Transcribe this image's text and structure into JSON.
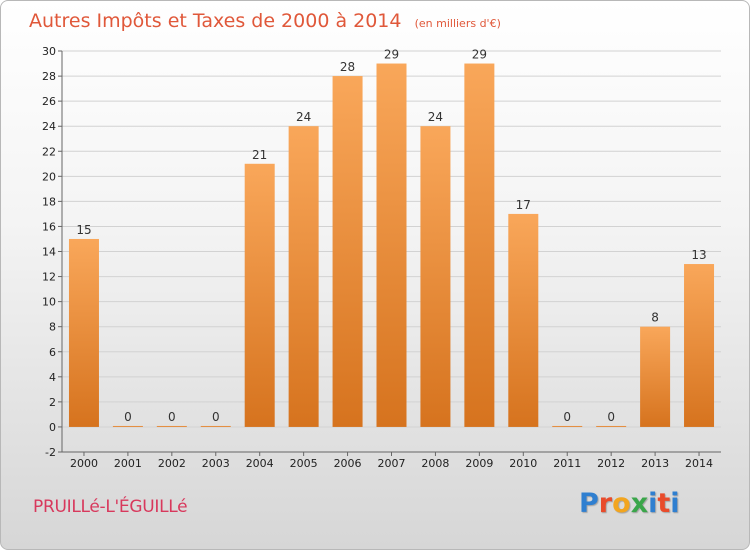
{
  "colors": {
    "title": "#e0583a",
    "place": "#d8385c",
    "bar_top": "#f9a75a",
    "bar_bottom": "#d6731e",
    "logo": [
      "#2f7fd0",
      "#e94b2b",
      "#f2a51f",
      "#3aa64a",
      "#2f7fd0",
      "#e94b2b"
    ]
  },
  "place_name": "PRUILLé-L'ÉGUILLé",
  "logo_text": [
    "P",
    "r",
    "o",
    "x",
    "i",
    "t",
    "i"
  ],
  "chart_data": {
    "type": "bar",
    "title": "Autres Impôts et Taxes de 2000 à 2014",
    "subtitle": "(en milliers d'€)",
    "categories": [
      "2000",
      "2001",
      "2002",
      "2003",
      "2004",
      "2005",
      "2006",
      "2007",
      "2008",
      "2009",
      "2010",
      "2011",
      "2012",
      "2013",
      "2014"
    ],
    "values": [
      15,
      0,
      0,
      0,
      21,
      24,
      28,
      29,
      24,
      29,
      17,
      0,
      0,
      8,
      13
    ],
    "value_labels": [
      "15",
      "0",
      "0",
      "0",
      "21",
      "24",
      "28",
      "29",
      "24",
      "29",
      "17",
      "0",
      "0",
      "8",
      "13"
    ],
    "ylim": [
      -2,
      30
    ],
    "yticks": [
      "-2",
      "0",
      "2",
      "4",
      "6",
      "8",
      "10",
      "12",
      "14",
      "16",
      "18",
      "20",
      "22",
      "24",
      "26",
      "28",
      "30"
    ],
    "grid": true
  }
}
